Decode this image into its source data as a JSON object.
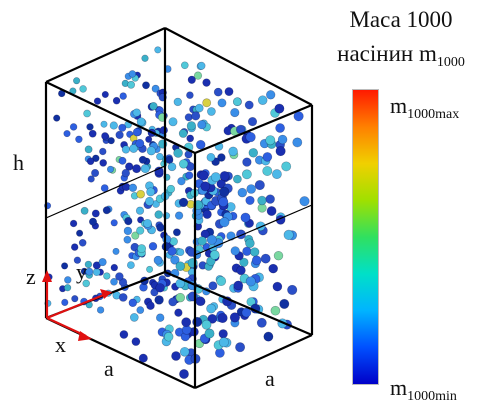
{
  "legend": {
    "title_line1": "Маса 1000",
    "title_line2_prefix": "насінин m",
    "title_line2_sub": "1000",
    "max_prefix": "m",
    "max_sub": "1000max",
    "min_prefix": "m",
    "min_sub": "1000min",
    "gradient_colors": [
      "#0000c8",
      "#0050ff",
      "#00b4ff",
      "#00e0c8",
      "#30e060",
      "#a0e000",
      "#f0d000",
      "#ff8000",
      "#ff1a00"
    ]
  },
  "labels": {
    "height": "h",
    "side_a_left": "a",
    "side_a_right": "a"
  },
  "axes": {
    "z": "z",
    "y": "y",
    "x": "x",
    "color": "#e01010"
  },
  "particles": {
    "count": 520,
    "palette": [
      "#1a2fb0",
      "#2d5fe0",
      "#3a8ee8",
      "#4cb8e8",
      "#3ab0c8",
      "#2a4fc8",
      "#50c8d8",
      "#7ad8a0",
      "#d8d040",
      "#1030a0"
    ],
    "palette_weights": [
      18,
      16,
      14,
      16,
      10,
      12,
      6,
      3,
      2,
      8
    ]
  }
}
